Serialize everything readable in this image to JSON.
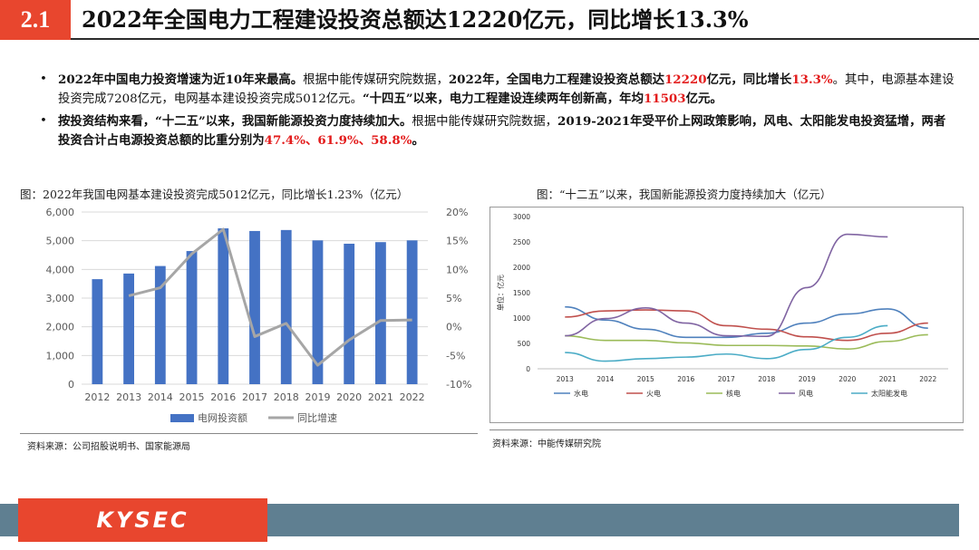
{
  "header": {
    "section_number": "2.1",
    "title": "2022年全国电力工程建设投资总额达12220亿元，同比增长13.3%"
  },
  "bullets": [
    {
      "bold_lead": "2022年中国电力投资增速为近10年来最高。",
      "t1": "根据中能传媒研究院数据，",
      "t1b": "2022年，全国电力工程建设投资总额达",
      "v1": "12220",
      "t2": "亿元，同比增长",
      "v2": "13.3%",
      "t3": "。其中，电源基本建设投资完成7208亿元，电网基本建设投资完成5012亿元。",
      "t4": "“十四五”以来，电力工程建设连续两年创新高，年均",
      "v3": "11503",
      "t5": "亿元。"
    },
    {
      "bold_lead": "按投资结构来看，“十二五”以来，我国新能源投资力度持续加大。",
      "t1": "根据中能传媒研究院数据，",
      "t2": "2019-2021年受平价上网政策影响，风电、太阳能发电投资猛增，两者投资合计占电源投资总额的比重分别为",
      "v1": "47.4%、61.9%、58.8%",
      "t3": "。"
    }
  ],
  "chart1": {
    "caption": "图：2022年我国电网基本建设投资完成5012亿元，同比增长1.23%（亿元）",
    "source": "资料来源：公司招股说明书、国家能源局"
  },
  "chart2": {
    "caption": "图：“十二五”以来，我国新能源投资力度持续加大（亿元）",
    "source": "资料来源：中能传媒研究院"
  },
  "footer": {
    "logo": "KYSEC"
  },
  "chart_data": [
    {
      "type": "bar",
      "categories": [
        "2012",
        "2013",
        "2014",
        "2015",
        "2016",
        "2017",
        "2018",
        "2019",
        "2020",
        "2021",
        "2022"
      ],
      "series": [
        {
          "name": "电网投资额",
          "type": "bar",
          "axis": "left",
          "color": "#4472c4",
          "values": [
            3660,
            3856,
            4118,
            4640,
            5431,
            5339,
            5373,
            5012,
            4896,
            4951,
            5012
          ]
        },
        {
          "name": "同比增速",
          "type": "line",
          "axis": "right",
          "color": "#a6a6a6",
          "values": [
            null,
            5.4,
            6.8,
            12.7,
            17.0,
            -1.7,
            0.6,
            -6.7,
            -2.3,
            1.1,
            1.2
          ]
        }
      ],
      "y_left": {
        "min": 0,
        "max": 6000,
        "ticks": [
          "0",
          "1,000",
          "2,000",
          "3,000",
          "4,000",
          "5,000",
          "6,000"
        ]
      },
      "y_right": {
        "min": -10,
        "max": 20,
        "ticks": [
          "-10%",
          "-5%",
          "0%",
          "5%",
          "10%",
          "15%",
          "20%"
        ]
      },
      "legend_placement": "bottom",
      "grid": true
    },
    {
      "type": "line",
      "categories": [
        "2013",
        "2014",
        "2015",
        "2016",
        "2017",
        "2018",
        "2019",
        "2020",
        "2021",
        "2022"
      ],
      "ylabel": "单位：亿元",
      "ylim": [
        0,
        3000
      ],
      "y_ticks": [
        "0",
        "500",
        "1000",
        "1500",
        "2000",
        "2500",
        "3000"
      ],
      "series": [
        {
          "name": "水电",
          "color": "#4f81bd",
          "values": [
            1220,
            960,
            780,
            620,
            620,
            700,
            900,
            1080,
            1180,
            800
          ]
        },
        {
          "name": "火电",
          "color": "#c0504d",
          "values": [
            1020,
            1140,
            1160,
            1140,
            850,
            780,
            630,
            560,
            700,
            900
          ]
        },
        {
          "name": "核电",
          "color": "#9bbb59",
          "values": [
            650,
            560,
            560,
            510,
            460,
            460,
            450,
            390,
            540,
            670
          ]
        },
        {
          "name": "风电",
          "color": "#8064a2",
          "values": [
            650,
            990,
            1200,
            900,
            650,
            640,
            1600,
            2650,
            2600,
            null
          ]
        },
        {
          "name": "太阳能发电",
          "color": "#4bacc6",
          "values": [
            320,
            150,
            200,
            230,
            290,
            200,
            380,
            620,
            850,
            null
          ]
        }
      ],
      "legend_placement": "bottom",
      "grid": false
    }
  ]
}
